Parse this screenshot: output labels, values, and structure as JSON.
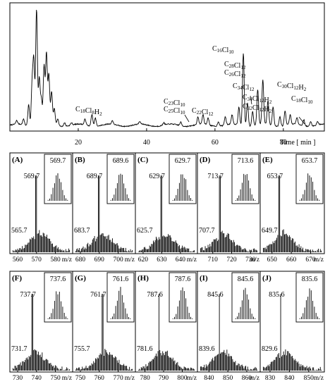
{
  "chart_data": [
    {
      "type": "line",
      "xlabel": "Time [ min ]",
      "xticks": [
        20,
        40,
        60,
        80
      ],
      "xlim": [
        0,
        92
      ],
      "annotations": [
        {
          "label": "C18Cl8H2",
          "x": 24.5
        },
        {
          "label": "C23Cl10",
          "x": 56
        },
        {
          "label": "C25Cl10",
          "x": 56
        },
        {
          "label": "C22Cl12",
          "x": 63
        },
        {
          "label": "C16Cl10",
          "x": 68
        },
        {
          "label": "C28Cl12",
          "x": 73
        },
        {
          "label": "C26Cl12",
          "x": 73
        },
        {
          "label": "C34Cl12",
          "x": 76
        },
        {
          "label": "C34Cl12H2",
          "x": 80
        },
        {
          "label": "C32Cl12H2",
          "x": 80
        },
        {
          "label": "C30Cl12H2",
          "x": 85
        },
        {
          "label": "C18Cl10",
          "x": 89
        }
      ],
      "peaks": [
        {
          "t": 2,
          "h": 0.03
        },
        {
          "t": 4,
          "h": 0.05
        },
        {
          "t": 5.5,
          "h": 0.18
        },
        {
          "t": 6.5,
          "h": 0.35
        },
        {
          "t": 7,
          "h": 0.55
        },
        {
          "t": 7.8,
          "h": 1.0
        },
        {
          "t": 8.6,
          "h": 0.4
        },
        {
          "t": 9.2,
          "h": 0.22
        },
        {
          "t": 10,
          "h": 0.5
        },
        {
          "t": 10.7,
          "h": 0.6
        },
        {
          "t": 11.4,
          "h": 0.42
        },
        {
          "t": 12.2,
          "h": 0.28
        },
        {
          "t": 13,
          "h": 0.14
        },
        {
          "t": 14,
          "h": 0.06
        },
        {
          "t": 16,
          "h": 0.03
        },
        {
          "t": 18,
          "h": 0.02
        },
        {
          "t": 22,
          "h": 0.05
        },
        {
          "t": 24,
          "h": 0.1
        },
        {
          "t": 25,
          "h": 0.07
        },
        {
          "t": 30,
          "h": 0.03
        },
        {
          "t": 38,
          "h": 0.02
        },
        {
          "t": 45,
          "h": 0.02
        },
        {
          "t": 50,
          "h": 0.03
        },
        {
          "t": 55,
          "h": 0.06
        },
        {
          "t": 56.5,
          "h": 0.08
        },
        {
          "t": 58,
          "h": 0.06
        },
        {
          "t": 61,
          "h": 0.04
        },
        {
          "t": 63,
          "h": 0.07
        },
        {
          "t": 65,
          "h": 0.08
        },
        {
          "t": 67,
          "h": 0.15
        },
        {
          "t": 68.3,
          "h": 0.62
        },
        {
          "t": 69.5,
          "h": 0.2
        },
        {
          "t": 71,
          "h": 0.12
        },
        {
          "t": 72.5,
          "h": 0.3
        },
        {
          "t": 74,
          "h": 0.38
        },
        {
          "t": 75.5,
          "h": 0.2
        },
        {
          "t": 77,
          "h": 0.16
        },
        {
          "t": 79,
          "h": 0.08
        },
        {
          "t": 80.5,
          "h": 0.12
        },
        {
          "t": 82,
          "h": 0.08
        },
        {
          "t": 84,
          "h": 0.06
        },
        {
          "t": 86,
          "h": 0.05
        },
        {
          "t": 88,
          "h": 0.04
        },
        {
          "t": 90,
          "h": 0.03
        }
      ]
    },
    {
      "type": "bar",
      "panels": [
        {
          "label": "(A)",
          "ticks": [
            560,
            570,
            580
          ],
          "xlim": [
            557,
            588
          ],
          "unit": "m/z",
          "main_peak": 569.7,
          "low_peak": 565.7,
          "inset_peak": 569.7
        },
        {
          "label": "(B)",
          "ticks": [
            680,
            690,
            700
          ],
          "xlim": [
            677,
            708
          ],
          "unit": "m/z",
          "main_peak": 689.7,
          "low_peak": 683.7,
          "inset_peak": 689.6
        },
        {
          "label": "(C)",
          "ticks": [
            620,
            630,
            640
          ],
          "xlim": [
            617,
            648
          ],
          "unit": "m/z",
          "main_peak": 629.7,
          "low_peak": 625.7,
          "inset_peak": 629.7
        },
        {
          "label": "(D)",
          "ticks": [
            710,
            720,
            730
          ],
          "xlim": [
            703,
            734
          ],
          "unit": "m/z",
          "main_peak": 713.7,
          "low_peak": 707.7,
          "inset_peak": 713.6
        },
        {
          "label": "(E)",
          "ticks": [
            650,
            660,
            670
          ],
          "xlim": [
            645,
            676
          ],
          "unit": "m/z",
          "main_peak": 653.7,
          "low_peak": 649.7,
          "inset_peak": 653.7
        },
        {
          "label": "(F)",
          "ticks": [
            730,
            740,
            750
          ],
          "xlim": [
            727,
            758
          ],
          "unit": "m/z",
          "main_peak": 737.7,
          "low_peak": 731.7,
          "inset_peak": 737.6
        },
        {
          "label": "(G)",
          "ticks": [
            750,
            760,
            770
          ],
          "xlim": [
            747,
            778
          ],
          "unit": "m/z",
          "main_peak": 761.7,
          "low_peak": 755.7,
          "inset_peak": 761.6
        },
        {
          "label": "(H)",
          "ticks": [
            780,
            790,
            800
          ],
          "xlim": [
            776,
            807
          ],
          "unit": "m/z",
          "main_peak": 787.6,
          "low_peak": 781.6,
          "inset_peak": 787.6
        },
        {
          "label": "(I)",
          "ticks": [
            840,
            850,
            860
          ],
          "xlim": [
            835,
            866
          ],
          "unit": "m/z",
          "main_peak": 845.6,
          "low_peak": 839.6,
          "inset_peak": 845.6
        },
        {
          "label": "(J)",
          "ticks": [
            830,
            840,
            850
          ],
          "xlim": [
            826,
            857
          ],
          "unit": "m/z",
          "main_peak": 835.6,
          "low_peak": 829.6,
          "inset_peak": 835.6
        }
      ]
    }
  ]
}
